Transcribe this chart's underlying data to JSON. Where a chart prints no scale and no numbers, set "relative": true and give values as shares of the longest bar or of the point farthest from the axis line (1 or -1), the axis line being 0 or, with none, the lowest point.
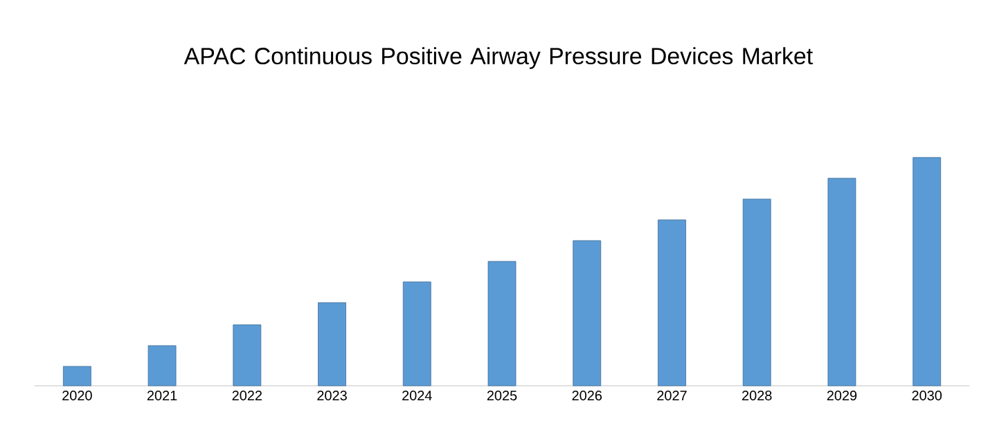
{
  "chart_data": {
    "type": "bar",
    "title": "APAC Continuous Positive Airway Pressure Devices Market",
    "categories": [
      "2020",
      "2021",
      "2022",
      "2023",
      "2024",
      "2025",
      "2026",
      "2027",
      "2028",
      "2029",
      "2030"
    ],
    "values": [
      0.085,
      0.176,
      0.267,
      0.364,
      0.455,
      0.545,
      0.636,
      0.727,
      0.818,
      0.909,
      1
    ],
    "color": "#5b9bd5",
    "relative": true
  }
}
